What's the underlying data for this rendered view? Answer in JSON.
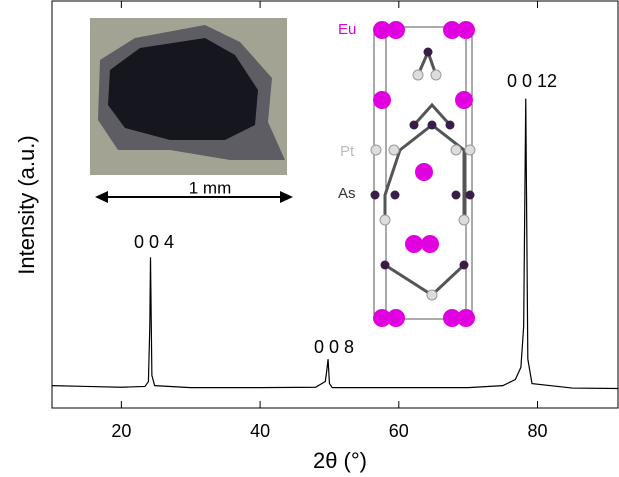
{
  "chart_data": {
    "type": "line",
    "x_label": "2θ (°)",
    "y_label": "Intensity (a.u.)",
    "x": [
      10,
      15,
      20,
      23.4,
      23.9,
      24.1,
      24.2,
      24.4,
      24.8,
      30,
      40,
      48,
      49.4,
      49.6,
      49.8,
      50.0,
      50.4,
      60,
      70,
      75,
      76.8,
      77.6,
      78.0,
      78.3,
      78.6,
      79.2,
      85,
      91.6
    ],
    "values": [
      5.5,
      5.3,
      5.1,
      5.3,
      6.5,
      20,
      37,
      8,
      5.5,
      5,
      5,
      5.1,
      6.5,
      9,
      12,
      6,
      5,
      5,
      5,
      5.5,
      7,
      10,
      20,
      76,
      12,
      6,
      4.9,
      4.8
    ],
    "color": "#000000",
    "xlim": [
      10,
      91.6
    ],
    "xticks": [
      20,
      40,
      60,
      80
    ],
    "ylim": [
      0,
      100
    ],
    "annotations": [
      "0 0 4",
      "0 0 8",
      "0 0 12"
    ],
    "inset_scale_label": "1 mm",
    "structure_labels": [
      "Eu",
      "Pt",
      "As"
    ]
  }
}
